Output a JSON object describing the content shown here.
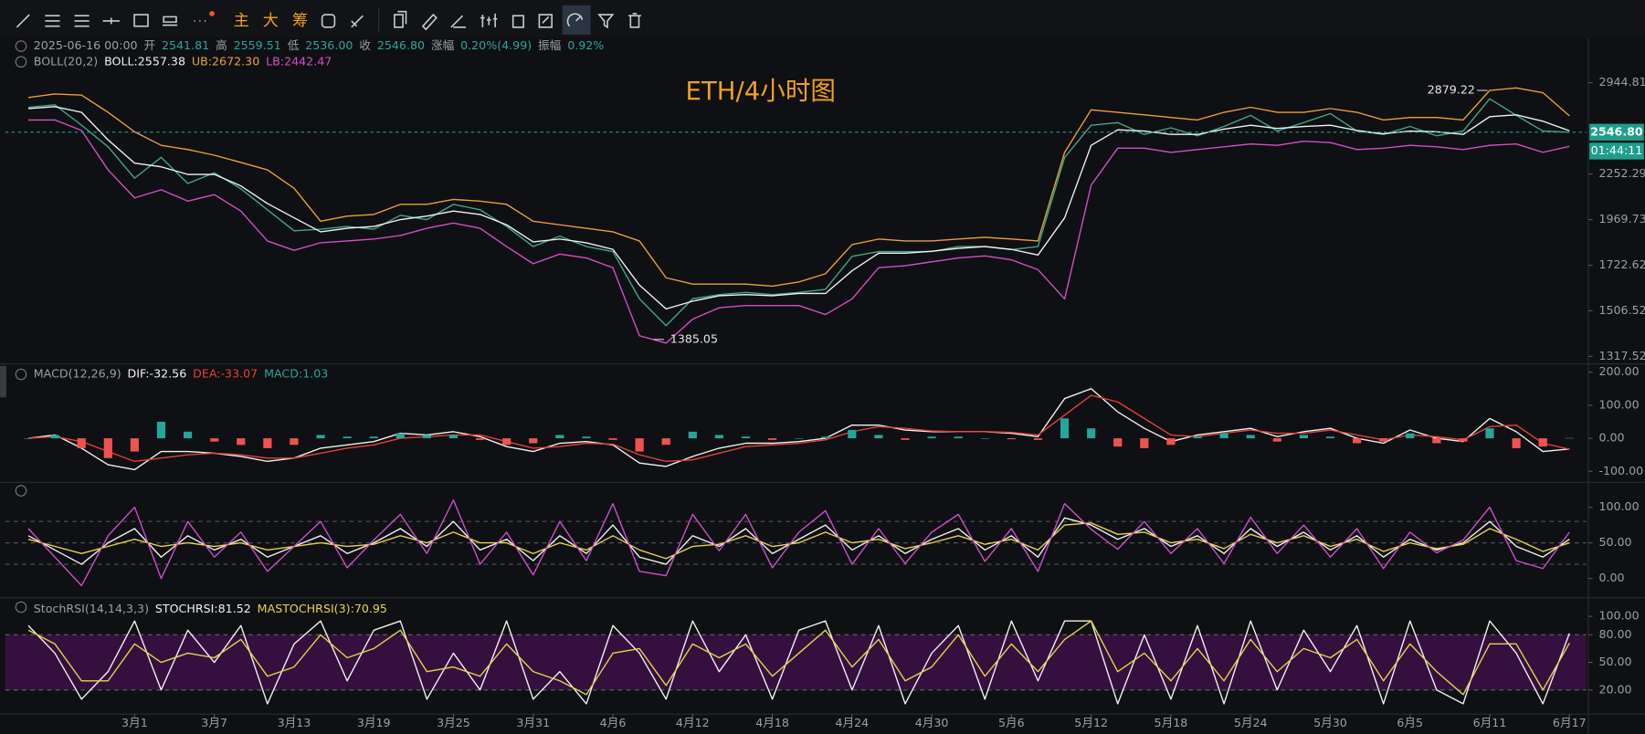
{
  "toolbar": {
    "buttons": [
      "主",
      "大",
      "筹"
    ]
  },
  "info": {
    "datetime": "2025-06-16 00:00",
    "fields": [
      {
        "label": "开",
        "value": "2541.81"
      },
      {
        "label": "高",
        "value": "2559.51"
      },
      {
        "label": "低",
        "value": "2536.00"
      },
      {
        "label": "收",
        "value": "2546.80"
      },
      {
        "label": "涨幅",
        "value": "0.20%(4.99)"
      },
      {
        "label": "振幅",
        "value": "0.92%"
      }
    ]
  },
  "chart_data": [
    {
      "type": "line",
      "title": "ETH/4小时图",
      "label": "BOLL(20,2)",
      "log_scale": true,
      "ylim": [
        1297,
        3372
      ],
      "yticks": [
        2944.81,
        2252.29,
        1969.73,
        1722.62,
        1506.52,
        1317.52
      ],
      "last_price": {
        "value": 2546.8,
        "label": "2546.80"
      },
      "countdown": "01:44:11",
      "annotations": [
        {
          "x": 55,
          "value": 2879.22,
          "label": "2879.22"
        },
        {
          "x": 24,
          "value": 1385.05,
          "label": "1385.05"
        }
      ],
      "series": [
        {
          "color": "#3fa88a",
          "values": [
            2740,
            2760,
            2600,
            2440,
            2225,
            2365,
            2190,
            2260,
            2156,
            2027,
            1906,
            1915,
            1930,
            1915,
            1995,
            1970,
            2060,
            2027,
            1930,
            1820,
            1876,
            1820,
            1793,
            1561,
            1442,
            1561,
            1580,
            1590,
            1580,
            1590,
            1605,
            1768,
            1793,
            1793,
            1793,
            1820,
            1820,
            1803,
            1820,
            2365,
            2600,
            2620,
            2530,
            2580,
            2520,
            2590,
            2676,
            2555,
            2620,
            2690,
            2555,
            2530,
            2590,
            2520,
            2555,
            2810,
            2676,
            2555,
            2546.8
          ]
        },
        {
          "name": "BOLL:2557.38",
          "color": "#f2f2f2",
          "values": [
            2730,
            2745,
            2700,
            2490,
            2325,
            2300,
            2250,
            2250,
            2175,
            2065,
            1980,
            1900,
            1920,
            1930,
            1970,
            1990,
            2020,
            2000,
            1940,
            1845,
            1860,
            1840,
            1805,
            1625,
            1515,
            1550,
            1575,
            1580,
            1575,
            1585,
            1585,
            1695,
            1785,
            1785,
            1795,
            1810,
            1820,
            1805,
            1775,
            1980,
            2450,
            2565,
            2555,
            2530,
            2530,
            2570,
            2600,
            2575,
            2590,
            2600,
            2560,
            2535,
            2555,
            2550,
            2530,
            2665,
            2680,
            2630,
            2557.38
          ]
        },
        {
          "name": "UB:2672.30",
          "color": "#e8a13a",
          "values": [
            2820,
            2850,
            2840,
            2700,
            2550,
            2450,
            2420,
            2380,
            2330,
            2280,
            2160,
            1960,
            1990,
            2000,
            2060,
            2060,
            2090,
            2080,
            2060,
            1960,
            1940,
            1920,
            1900,
            1850,
            1660,
            1630,
            1630,
            1630,
            1620,
            1640,
            1680,
            1830,
            1860,
            1850,
            1850,
            1860,
            1870,
            1860,
            1850,
            2400,
            2720,
            2700,
            2680,
            2660,
            2640,
            2700,
            2740,
            2700,
            2700,
            2730,
            2700,
            2640,
            2660,
            2660,
            2640,
            2880,
            2900,
            2860,
            2672.3
          ]
        },
        {
          "name": "LB:2442.47",
          "color": "#d54fc2",
          "values": [
            2640,
            2640,
            2560,
            2280,
            2100,
            2150,
            2080,
            2120,
            2020,
            1850,
            1800,
            1840,
            1850,
            1860,
            1880,
            1920,
            1950,
            1920,
            1820,
            1730,
            1780,
            1760,
            1710,
            1400,
            1370,
            1470,
            1520,
            1530,
            1530,
            1530,
            1490,
            1560,
            1710,
            1720,
            1740,
            1760,
            1770,
            1750,
            1700,
            1560,
            2180,
            2430,
            2430,
            2400,
            2420,
            2440,
            2460,
            2450,
            2480,
            2470,
            2420,
            2430,
            2450,
            2440,
            2420,
            2450,
            2460,
            2400,
            2442.47
          ]
        }
      ]
    },
    {
      "type": "line",
      "label": "MACD(12,26,9)",
      "ylim": [
        -127,
        222
      ],
      "yticks": [
        {
          "value": 200,
          "label": "200.00"
        },
        {
          "value": 100,
          "label": "100.00"
        },
        {
          "value": 0,
          "label": "0.00"
        },
        {
          "value": -100,
          "label": "-100.00"
        }
      ],
      "series": [
        {
          "name": "DIF:-32.56",
          "color": "#f2f2f2",
          "values": [
            0,
            10,
            -30,
            -80,
            -95,
            -40,
            -40,
            -45,
            -55,
            -70,
            -60,
            -30,
            -20,
            -10,
            15,
            10,
            20,
            5,
            -25,
            -40,
            -15,
            -10,
            -20,
            -75,
            -85,
            -55,
            -30,
            -15,
            -15,
            -10,
            0,
            40,
            40,
            25,
            20,
            20,
            20,
            15,
            5,
            120,
            150,
            80,
            30,
            -10,
            10,
            20,
            30,
            5,
            20,
            30,
            0,
            -15,
            25,
            0,
            -10,
            60,
            20,
            -40,
            -32.56
          ]
        },
        {
          "name": "DEA:-33.07",
          "color": "#e5403a",
          "values": [
            0,
            5,
            -10,
            -40,
            -70,
            -60,
            -50,
            -45,
            -50,
            -60,
            -60,
            -45,
            -30,
            -20,
            0,
            5,
            10,
            10,
            -10,
            -30,
            -25,
            -15,
            -18,
            -50,
            -70,
            -65,
            -45,
            -25,
            -20,
            -15,
            -5,
            20,
            35,
            30,
            22,
            20,
            20,
            18,
            10,
            70,
            130,
            110,
            60,
            10,
            5,
            15,
            25,
            15,
            15,
            25,
            10,
            -5,
            10,
            5,
            -5,
            35,
            40,
            -15,
            -33.07
          ]
        },
        {
          "name": "MACD:1.03",
          "type": "bar",
          "colors": [
            "#26a69a",
            "#ef5350"
          ],
          "values": [
            0,
            10,
            -30,
            -60,
            -40,
            50,
            20,
            -10,
            -20,
            -30,
            -20,
            10,
            5,
            5,
            15,
            10,
            10,
            -5,
            -20,
            -15,
            10,
            5,
            -5,
            -40,
            -20,
            20,
            10,
            5,
            -5,
            0,
            5,
            25,
            10,
            -5,
            5,
            5,
            0,
            -3,
            -5,
            60,
            30,
            -25,
            -30,
            -20,
            5,
            15,
            10,
            -10,
            10,
            5,
            -15,
            -10,
            15,
            -15,
            -10,
            30,
            -30,
            -25,
            1.03
          ]
        }
      ]
    },
    {
      "type": "line",
      "guides": [
        20,
        50,
        80
      ],
      "ylim": [
        -24,
        132
      ],
      "yticks": [
        {
          "value": 100,
          "label": "100.00"
        },
        {
          "value": 50,
          "label": "50.00"
        },
        {
          "value": 0,
          "label": "0.00"
        }
      ],
      "series": [
        {
          "color": "#f2f2f2",
          "values": [
            60,
            40,
            20,
            50,
            70,
            30,
            60,
            40,
            55,
            30,
            45,
            60,
            35,
            50,
            70,
            45,
            80,
            40,
            55,
            25,
            60,
            35,
            75,
            30,
            20,
            60,
            45,
            70,
            35,
            55,
            75,
            40,
            60,
            35,
            55,
            70,
            40,
            60,
            30,
            85,
            75,
            55,
            70,
            45,
            60,
            35,
            70,
            45,
            65,
            40,
            60,
            30,
            55,
            40,
            50,
            80,
            45,
            30,
            55
          ]
        },
        {
          "color": "#e6d44a",
          "values": [
            55,
            45,
            35,
            45,
            55,
            45,
            50,
            45,
            50,
            40,
            45,
            50,
            45,
            48,
            60,
            50,
            65,
            50,
            50,
            35,
            50,
            40,
            60,
            40,
            28,
            45,
            48,
            60,
            45,
            50,
            65,
            50,
            55,
            42,
            50,
            60,
            48,
            55,
            40,
            75,
            78,
            62,
            65,
            50,
            55,
            42,
            62,
            50,
            60,
            45,
            55,
            38,
            50,
            42,
            48,
            70,
            55,
            38,
            50
          ]
        },
        {
          "color": "#cf4fcf",
          "values": [
            70,
            30,
            -10,
            60,
            100,
            0,
            80,
            30,
            65,
            10,
            45,
            80,
            15,
            54,
            90,
            35,
            110,
            20,
            65,
            5,
            80,
            25,
            105,
            10,
            4,
            90,
            39,
            90,
            15,
            65,
            95,
            20,
            70,
            21,
            65,
            90,
            24,
            70,
            10,
            105,
            69,
            41,
            80,
            35,
            70,
            21,
            86,
            35,
            75,
            30,
            70,
            14,
            65,
            36,
            54,
            100,
            25,
            14,
            65
          ]
        }
      ]
    },
    {
      "type": "line",
      "label": "StochRSI(14,14,3,3)",
      "band": [
        20,
        80
      ],
      "band_color": "#35103f",
      "ylim": [
        -5,
        118
      ],
      "yticks": [
        {
          "value": 100,
          "label": "100.00"
        },
        {
          "value": 80,
          "label": "80.00"
        },
        {
          "value": 50,
          "label": "50.00"
        },
        {
          "value": 20,
          "label": "20.00"
        }
      ],
      "categories": [
        null,
        null,
        null,
        null,
        "3月1",
        null,
        null,
        "3月7",
        null,
        null,
        "3月13",
        null,
        null,
        "3月19",
        null,
        null,
        "3月25",
        null,
        null,
        "3月31",
        null,
        null,
        "4月6",
        null,
        null,
        "4月12",
        null,
        null,
        "4月18",
        null,
        null,
        "4月24",
        null,
        null,
        "4月30",
        null,
        null,
        "5月6",
        null,
        null,
        "5月12",
        null,
        null,
        "5月18",
        null,
        null,
        "5月24",
        null,
        null,
        "5月30",
        null,
        null,
        "6月5",
        null,
        null,
        "6月11",
        null,
        null,
        "6月17"
      ],
      "series": [
        {
          "name": "STOCHRSI:81.52",
          "color": "#f2f2f2",
          "values": [
            90,
            60,
            10,
            40,
            95,
            20,
            85,
            50,
            90,
            5,
            70,
            95,
            30,
            85,
            95,
            10,
            60,
            20,
            95,
            10,
            40,
            5,
            90,
            60,
            10,
            95,
            40,
            80,
            10,
            85,
            95,
            20,
            90,
            5,
            60,
            90,
            10,
            95,
            30,
            95,
            95,
            5,
            80,
            10,
            90,
            5,
            95,
            20,
            85,
            40,
            90,
            5,
            95,
            20,
            5,
            95,
            60,
            5,
            81.52
          ]
        },
        {
          "name": "MASTOCHRSI(3):70.95",
          "color": "#e6d44a",
          "values": [
            85,
            70,
            30,
            30,
            70,
            50,
            60,
            55,
            75,
            35,
            45,
            80,
            55,
            65,
            85,
            40,
            45,
            35,
            70,
            40,
            30,
            15,
            60,
            65,
            25,
            70,
            55,
            70,
            35,
            60,
            85,
            45,
            75,
            30,
            45,
            80,
            35,
            70,
            40,
            75,
            95,
            40,
            60,
            30,
            65,
            30,
            75,
            40,
            65,
            55,
            75,
            30,
            70,
            40,
            15,
            70,
            70,
            20,
            70.95
          ]
        }
      ]
    }
  ]
}
